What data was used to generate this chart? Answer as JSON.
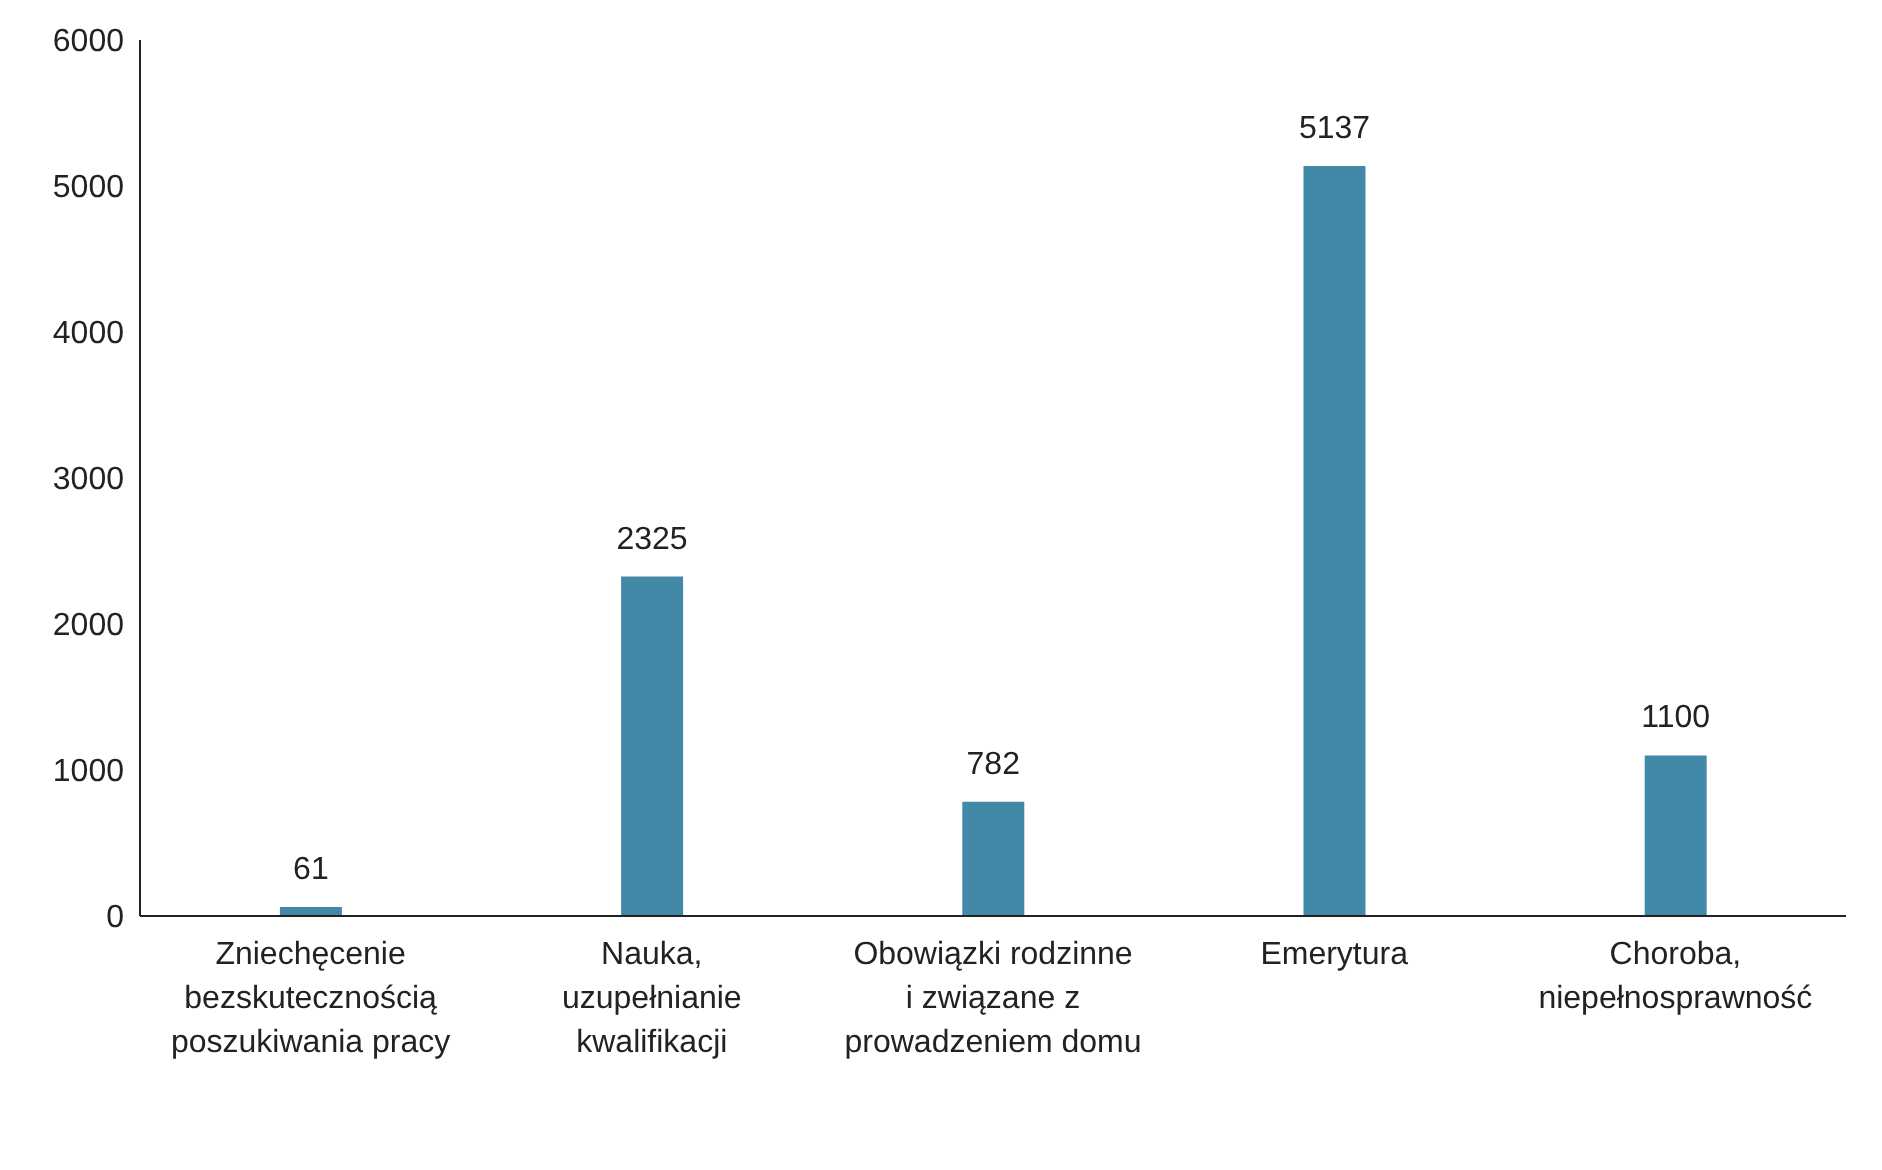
{
  "chart_data": {
    "type": "bar",
    "categories": [
      "Zniechęcenie bezskutecznością poszukiwania pracy",
      "Nauka, uzupełnianie kwalifikacji",
      "Obowiązki rodzinne i związane z prowadzeniem domu",
      "Emerytura",
      "Choroba, niepełnosprawność"
    ],
    "values": [
      61,
      2325,
      782,
      5137,
      1100
    ],
    "color": "#4289a8",
    "ylim": [
      0,
      6000
    ],
    "yticks": [
      0,
      1000,
      2000,
      3000,
      4000,
      5000,
      6000
    ],
    "grid": false,
    "data_labels": true
  }
}
